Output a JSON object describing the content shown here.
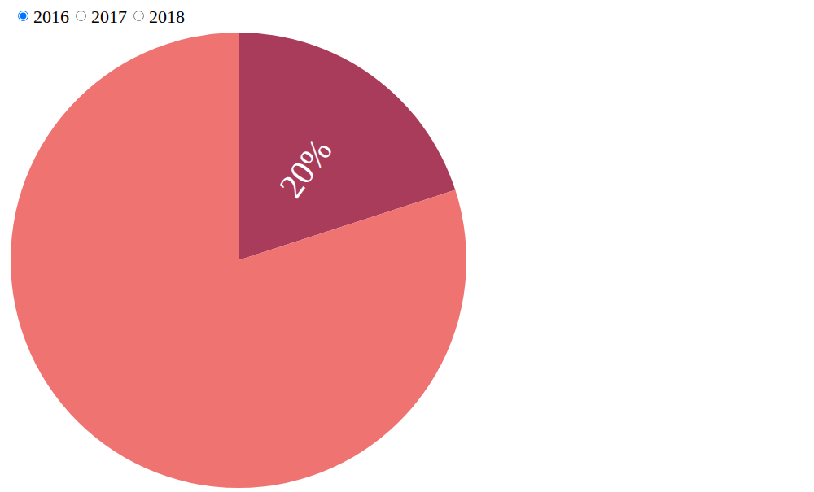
{
  "controls": {
    "options": [
      "2016",
      "2017",
      "2018"
    ],
    "selected": "2016"
  },
  "chart_data": {
    "type": "pie",
    "values": [
      20,
      80
    ],
    "colors": [
      "#a93c5b",
      "#ef7471"
    ],
    "data_labels": true,
    "value_labels": [
      "20%",
      null
    ]
  }
}
